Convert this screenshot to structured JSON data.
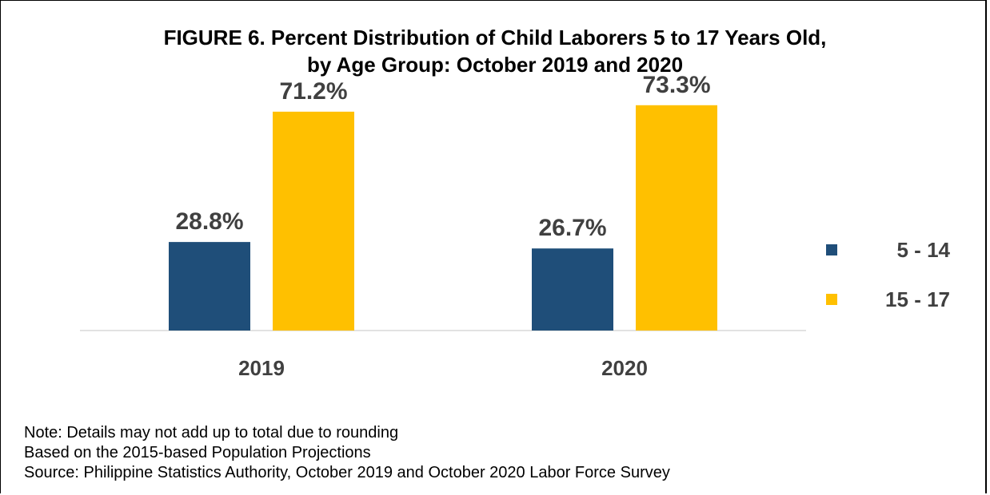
{
  "chart_data": {
    "type": "bar",
    "title_lines": [
      "FIGURE 6. Percent Distribution of Child Laborers 5 to 17 Years Old,",
      "by Age Group: October 2019 and 2020"
    ],
    "categories": [
      "2019",
      "2020"
    ],
    "series": [
      {
        "name": "5 - 14",
        "values": [
          28.8,
          26.7
        ],
        "color": "#1f4e79",
        "labels": [
          "28.8%",
          "26.7%"
        ]
      },
      {
        "name": "15 - 17",
        "values": [
          71.2,
          73.3
        ],
        "color": "#ffc000",
        "labels": [
          "71.2%",
          "73.3%"
        ]
      }
    ],
    "ylim": [
      0,
      80
    ],
    "legend_position": "right",
    "grid": false,
    "xlabel": "",
    "ylabel": ""
  },
  "notes": [
    "Note: Details may not add up to total due to rounding",
    "Based on the 2015-based Population Projections",
    "Source: Philippine Statistics Authority, October 2019 and October 2020 Labor Force Survey"
  ]
}
